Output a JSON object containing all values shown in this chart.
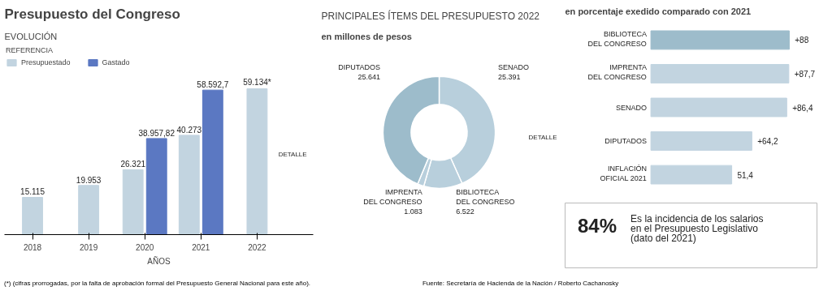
{
  "chart_data": [
    {
      "type": "bar",
      "title": "Presupuesto del Congreso",
      "subtitle": "EVOLUCIÓN",
      "xlabel": "AÑOS",
      "legend_title": "REFERENCIA",
      "legend": "top left",
      "grid": false,
      "categories": [
        "2018",
        "2019",
        "2020",
        "2021",
        "2022"
      ],
      "series": [
        {
          "name": "Presupuestado",
          "color": "#c2d4e0",
          "values": [
            15115,
            19953,
            26321,
            40273,
            59134
          ],
          "value_labels": [
            "15.115",
            "19.953",
            "26.321",
            "40.273",
            "59.134*"
          ]
        },
        {
          "name": "Gastado",
          "color": "#5b78c2",
          "values": [
            null,
            null,
            38957.82,
            58592.7,
            null
          ],
          "value_labels": [
            null,
            null,
            "38.957,82",
            "58.592,7",
            null
          ]
        }
      ],
      "annotations": [
        "DETALLE",
        "(*) (cifras prorrogadas, por la falta de aprobación formal del Presupuesto General Nacional para este año)."
      ]
    },
    {
      "type": "donut",
      "title": "PRINCIPALES ÍTEMS DEL PRESUPUESTO 2022",
      "subtitle": "en millones de pesos",
      "categories": [
        "SENADO",
        "BIBLIOTECA\nDEL CONGRESO",
        "IMPRENTA\nDEL CONGRESO",
        "DIPUTADOS"
      ],
      "values": [
        25391,
        6522,
        1083,
        25641
      ],
      "value_labels": [
        "25.391",
        "6.522",
        "1.083",
        "25.641"
      ],
      "colors": [
        "#b8cfdc",
        "#b8cfdc",
        "#b8cfdc",
        "#9dbccb"
      ],
      "annotations": [
        "DETALLE"
      ]
    },
    {
      "type": "bar",
      "orientation": "horizontal",
      "title": "en porcentaje exedido comparado con 2021",
      "categories": [
        "BIBLIOTECA\nDEL CONGRESO",
        "IMPRENTA\nDEL CONGRESO",
        "SENADO",
        "DIPUTADOS",
        "INFLACIÓN\nOFICIAL 2021"
      ],
      "values": [
        88,
        87.7,
        86.4,
        64.2,
        51.4
      ],
      "value_labels": [
        "+88",
        "+87,7",
        "+86,4",
        "+64,2",
        "51,4"
      ],
      "colors": [
        "#9dbccb",
        "#c2d4e0",
        "#c2d4e0",
        "#c2d4e0",
        "#c2d4e0"
      ],
      "annotations": [
        "Fuente: Secretaría de Hacienda de la Nación / Roberto Cachanosky"
      ]
    },
    {
      "type": "other",
      "annotations": [
        "84%",
        "Es la incidencia de los salarios\nen el Presupuesto Legislativo\n(dato del 2021)"
      ]
    }
  ]
}
